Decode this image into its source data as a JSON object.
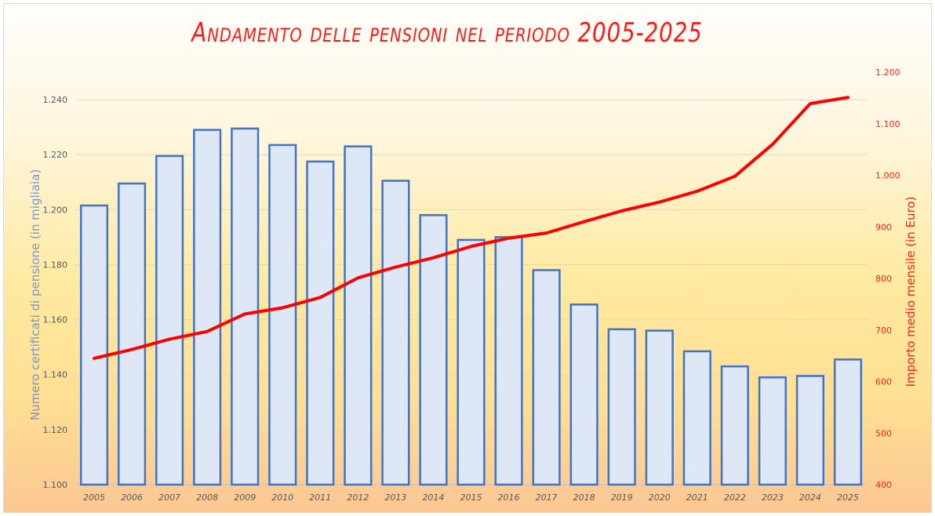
{
  "chart_data": {
    "type": "bar",
    "title": "Andamento delle pensioni nel periodo 2005-2025",
    "categories": [
      "2005",
      "2006",
      "2007",
      "2008",
      "2009",
      "2010",
      "2011",
      "2012",
      "2013",
      "2014",
      "2015",
      "2016",
      "2017",
      "2018",
      "2019",
      "2020",
      "2021",
      "2022",
      "2023",
      "2024",
      "2025"
    ],
    "series": [
      {
        "type": "bar",
        "axis": "left",
        "values": [
          1201.5,
          1209.5,
          1219.5,
          1229.0,
          1229.5,
          1223.5,
          1217.5,
          1223.0,
          1210.5,
          1198.0,
          1189.0,
          1190.0,
          1178.0,
          1165.5,
          1156.5,
          1156.0,
          1148.5,
          1143.0,
          1139.0,
          1139.5,
          1145.5
        ],
        "color": "#4472c4",
        "fill": "#dde7f5"
      },
      {
        "type": "line",
        "axis": "right",
        "values": [
          645,
          662,
          682,
          697,
          731,
          743,
          763,
          801,
          822,
          840,
          862,
          878,
          888,
          910,
          931,
          948,
          969,
          998,
          1060,
          1139,
          1151
        ],
        "color": "#ff0000"
      }
    ],
    "ylabel": "Numero certificati di pensione (in migliaia)",
    "ylabel_right": "Importo medio mensile (in Euro)",
    "ylim": [
      1100,
      1250
    ],
    "ylim_right": [
      400,
      1200
    ],
    "yticks_left": [
      "1.100",
      "1.120",
      "1.140",
      "1.160",
      "1.180",
      "1.200",
      "1.220",
      "1.240"
    ],
    "yticks_right": [
      "400",
      "500",
      "600",
      "700",
      "800",
      "900",
      "1.000",
      "1.100",
      "1.200"
    ],
    "grid": true,
    "legend": "none"
  }
}
